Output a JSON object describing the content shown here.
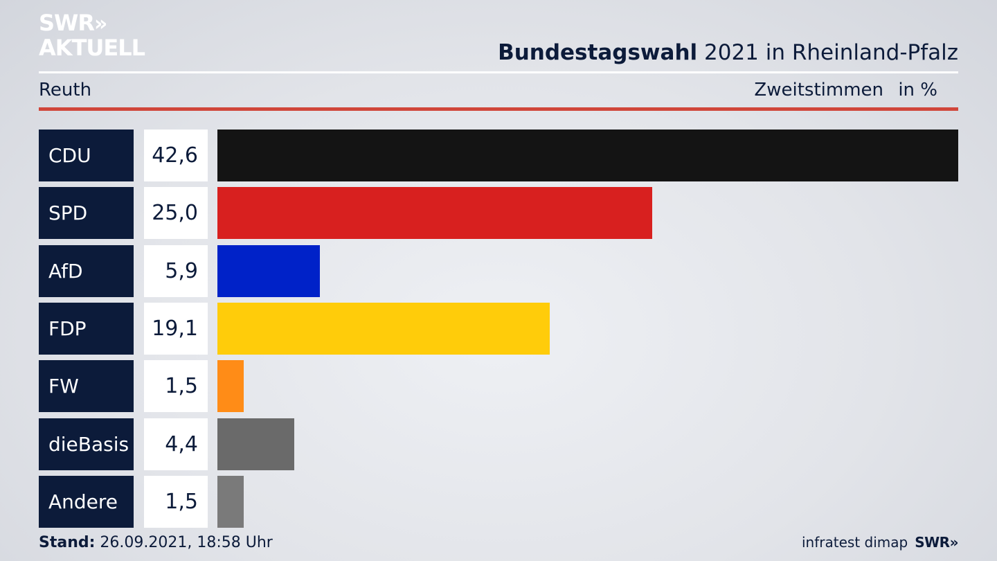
{
  "brand": {
    "line1": "SWR",
    "chevrons": "»",
    "line2": "AKTUELL"
  },
  "header": {
    "title_bold": "Bundestagswahl",
    "title_rest": " 2021 in Rheinland-Pfalz",
    "region": "Reuth",
    "vote_type": "Zweitstimmen",
    "unit": "in %"
  },
  "chart_data": {
    "type": "bar",
    "orientation": "horizontal",
    "categories": [
      "CDU",
      "SPD",
      "AfD",
      "FDP",
      "FW",
      "dieBasis",
      "Andere"
    ],
    "values": [
      42.6,
      25.0,
      5.9,
      19.1,
      1.5,
      4.4,
      1.5
    ],
    "value_labels": [
      "42,6",
      "25,0",
      "5,9",
      "19,1",
      "1,5",
      "4,4",
      "1,5"
    ],
    "colors": [
      "#141414",
      "#d8201f",
      "#0022c8",
      "#ffcc0a",
      "#ff8c17",
      "#6a6a6a",
      "#7a7a7a"
    ],
    "xlim": [
      0,
      42.6
    ]
  },
  "footer": {
    "stand_label": "Stand:",
    "stand_value": " 26.09.2021, 18:58 Uhr",
    "source": "infratest dimap",
    "brand": "SWR»"
  }
}
